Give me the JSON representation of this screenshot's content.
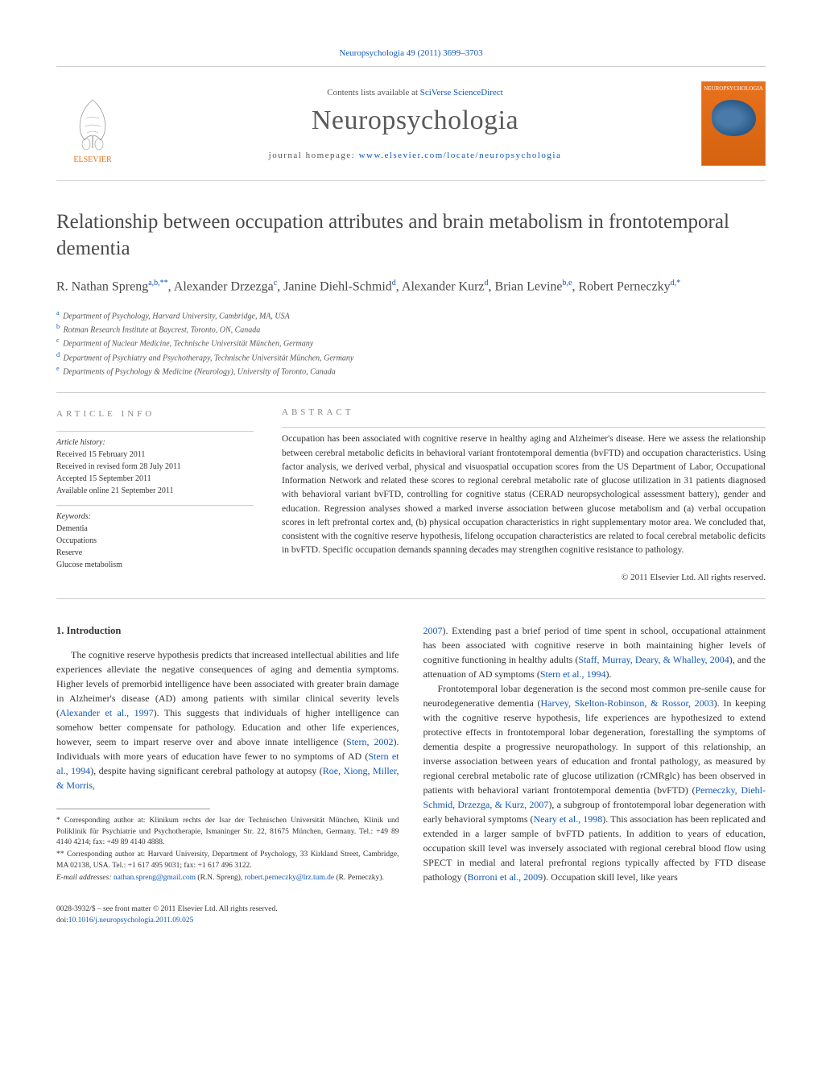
{
  "header": {
    "citation": "Neuropsychologia 49 (2011) 3699–3703",
    "contents_prefix": "Contents lists available at ",
    "contents_link": "SciVerse ScienceDirect",
    "journal_title": "Neuropsychologia",
    "homepage_prefix": "journal homepage: ",
    "homepage_url": "www.elsevier.com/locate/neuropsychologia",
    "elsevier_label": "ELSEVIER",
    "cover_label": "NEUROPSYCHOLOGIA"
  },
  "article": {
    "title": "Relationship between occupation attributes and brain metabolism in frontotemporal dementia",
    "authors_html": "R. Nathan Spreng",
    "author_list": [
      {
        "name": "R. Nathan Spreng",
        "sup": "a,b,**"
      },
      {
        "name": "Alexander Drzezga",
        "sup": "c"
      },
      {
        "name": "Janine Diehl-Schmid",
        "sup": "d"
      },
      {
        "name": "Alexander Kurz",
        "sup": "d"
      },
      {
        "name": "Brian Levine",
        "sup": "b,e"
      },
      {
        "name": "Robert Perneczky",
        "sup": "d,*"
      }
    ],
    "affiliations": [
      {
        "label": "a",
        "text": "Department of Psychology, Harvard University, Cambridge, MA, USA"
      },
      {
        "label": "b",
        "text": "Rotman Research Institute at Baycrest, Toronto, ON, Canada"
      },
      {
        "label": "c",
        "text": "Department of Nuclear Medicine, Technische Universität München, Germany"
      },
      {
        "label": "d",
        "text": "Department of Psychiatry and Psychotherapy, Technische Universität München, Germany"
      },
      {
        "label": "e",
        "text": "Departments of Psychology & Medicine (Neurology), University of Toronto, Canada"
      }
    ]
  },
  "info": {
    "heading": "ARTICLE INFO",
    "history_label": "Article history:",
    "received": "Received 15 February 2011",
    "revised": "Received in revised form 28 July 2011",
    "accepted": "Accepted 15 September 2011",
    "online": "Available online 21 September 2011",
    "keywords_label": "Keywords:",
    "keywords": [
      "Dementia",
      "Occupations",
      "Reserve",
      "Glucose metabolism"
    ]
  },
  "abstract": {
    "heading": "ABSTRACT",
    "text": "Occupation has been associated with cognitive reserve in healthy aging and Alzheimer's disease. Here we assess the relationship between cerebral metabolic deficits in behavioral variant frontotemporal dementia (bvFTD) and occupation characteristics. Using factor analysis, we derived verbal, physical and visuospatial occupation scores from the US Department of Labor, Occupational Information Network and related these scores to regional cerebral metabolic rate of glucose utilization in 31 patients diagnosed with behavioral variant bvFTD, controlling for cognitive status (CERAD neuropsychological assessment battery), gender and education. Regression analyses showed a marked inverse association between glucose metabolism and (a) verbal occupation scores in left prefrontal cortex and, (b) physical occupation characteristics in right supplementary motor area. We concluded that, consistent with the cognitive reserve hypothesis, lifelong occupation characteristics are related to focal cerebral metabolic deficits in bvFTD. Specific occupation demands spanning decades may strengthen cognitive resistance to pathology.",
    "copyright": "© 2011 Elsevier Ltd. All rights reserved."
  },
  "body": {
    "intro_heading": "1.  Introduction",
    "left_col": "The cognitive reserve hypothesis predicts that increased intellectual abilities and life experiences alleviate the negative consequences of aging and dementia symptoms. Higher levels of premorbid intelligence have been associated with greater brain damage in Alzheimer's disease (AD) among patients with similar clinical severity levels (<span class=\"link\">Alexander et al., 1997</span>). This suggests that individuals of higher intelligence can somehow better compensate for pathology. Education and other life experiences, however, seem to impart reserve over and above innate intelligence (<span class=\"link\">Stern, 2002</span>). Individuals with more years of education have fewer to no symptoms of AD (<span class=\"link\">Stern et al., 1994</span>), despite having significant cerebral pathology at autopsy (<span class=\"link\">Roe, Xiong, Miller, & Morris,</span>",
    "right_col_p1": "<span class=\"link\">2007</span>). Extending past a brief period of time spent in school, occupational attainment has been associated with cognitive reserve in both maintaining higher levels of cognitive functioning in healthy adults (<span class=\"link\">Staff, Murray, Deary, & Whalley, 2004</span>), and the attenuation of AD symptoms (<span class=\"link\">Stern et al., 1994</span>).",
    "right_col_p2": "Frontotemporal lobar degeneration is the second most common pre-senile cause for neurodegenerative dementia (<span class=\"link\">Harvey, Skelton-Robinson, & Rossor, 2003</span>). In keeping with the cognitive reserve hypothesis, life experiences are hypothesized to extend protective effects in frontotemporal lobar degeneration, forestalling the symptoms of dementia despite a progressive neuropathology. In support of this relationship, an inverse association between years of education and frontal pathology, as measured by regional cerebral metabolic rate of glucose utilization (rCMRglc) has been observed in patients with behavioral variant frontotemporal dementia (bvFTD) (<span class=\"link\">Perneczky, Diehl-Schmid, Drzezga, & Kurz, 2007</span>), a subgroup of frontotemporal lobar degeneration with early behavioral symptoms (<span class=\"link\">Neary et al., 1998</span>). This association has been replicated and extended in a larger sample of bvFTD patients. In addition to years of education, occupation skill level was inversely associated with regional cerebral blood flow using SPECT in medial and lateral prefrontal regions typically affected by FTD disease pathology (<span class=\"link\">Borroni et al., 2009</span>). Occupation skill level, like years"
  },
  "footnotes": {
    "corr1": "* Corresponding author at: Klinikum rechts der Isar der Technischen Universität München, Klinik und Poliklinik für Psychiatrie und Psychotherapie, Ismaninger Str. 22, 81675 München, Germany. Tel.: +49 89 4140 4214; fax: +49 89 4140 4888.",
    "corr2": "** Corresponding author at: Harvard University, Department of Psychology, 33 Kirkland Street, Cambridge, MA 02138, USA. Tel.: +1 617 495 9031; fax: +1 617 496 3122.",
    "email_label": "E-mail addresses: ",
    "email1": "nathan.spreng@gmail.com",
    "email1_name": " (R.N. Spreng), ",
    "email2": "robert.perneczky@lrz.tum.de",
    "email2_name": " (R. Perneczky)."
  },
  "footer": {
    "issn": "0028-3932/$ – see front matter © 2011 Elsevier Ltd. All rights reserved.",
    "doi_label": "doi:",
    "doi": "10.1016/j.neuropsychologia.2011.09.025"
  },
  "colors": {
    "link": "#1158b8",
    "orange": "#e8711c",
    "grey_border": "#cccccc",
    "text": "#333333",
    "heading_grey": "#4a4a4a"
  }
}
